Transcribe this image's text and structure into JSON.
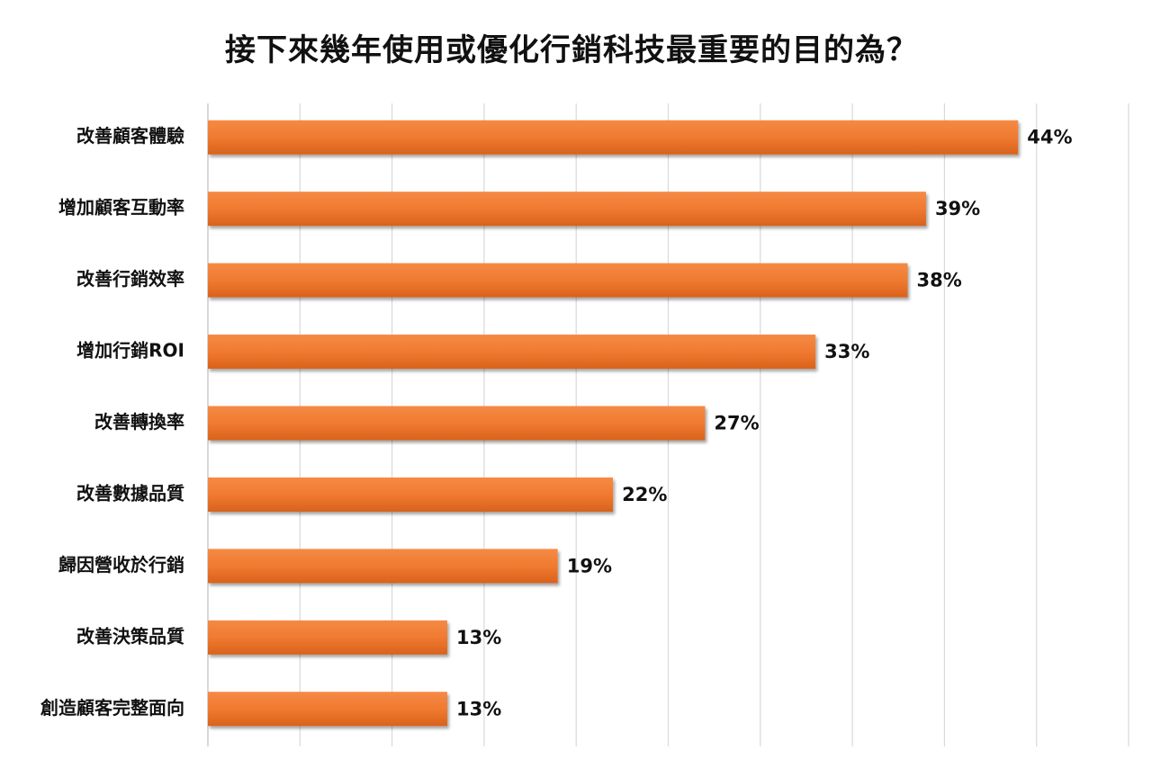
{
  "chart_data": {
    "type": "bar",
    "orientation": "horizontal",
    "title": "接下來幾年使用或優化行銷科技最重要的目的為？",
    "categories": [
      "改善顧客體驗",
      "增加顧客互動率",
      "改善行銷效率",
      "增加行銷ROI",
      "改善轉換率",
      "改善數據品質",
      "歸因營收於行銷",
      "改善決策品質",
      "創造顧客完整面向"
    ],
    "values": [
      44,
      39,
      38,
      33,
      27,
      22,
      19,
      13,
      13
    ],
    "value_labels": [
      "44%",
      "39%",
      "38%",
      "33%",
      "27%",
      "22%",
      "19%",
      "13%",
      "13%"
    ],
    "xlim": [
      0,
      50
    ],
    "grid": true,
    "bar_color": "#F07A30"
  }
}
